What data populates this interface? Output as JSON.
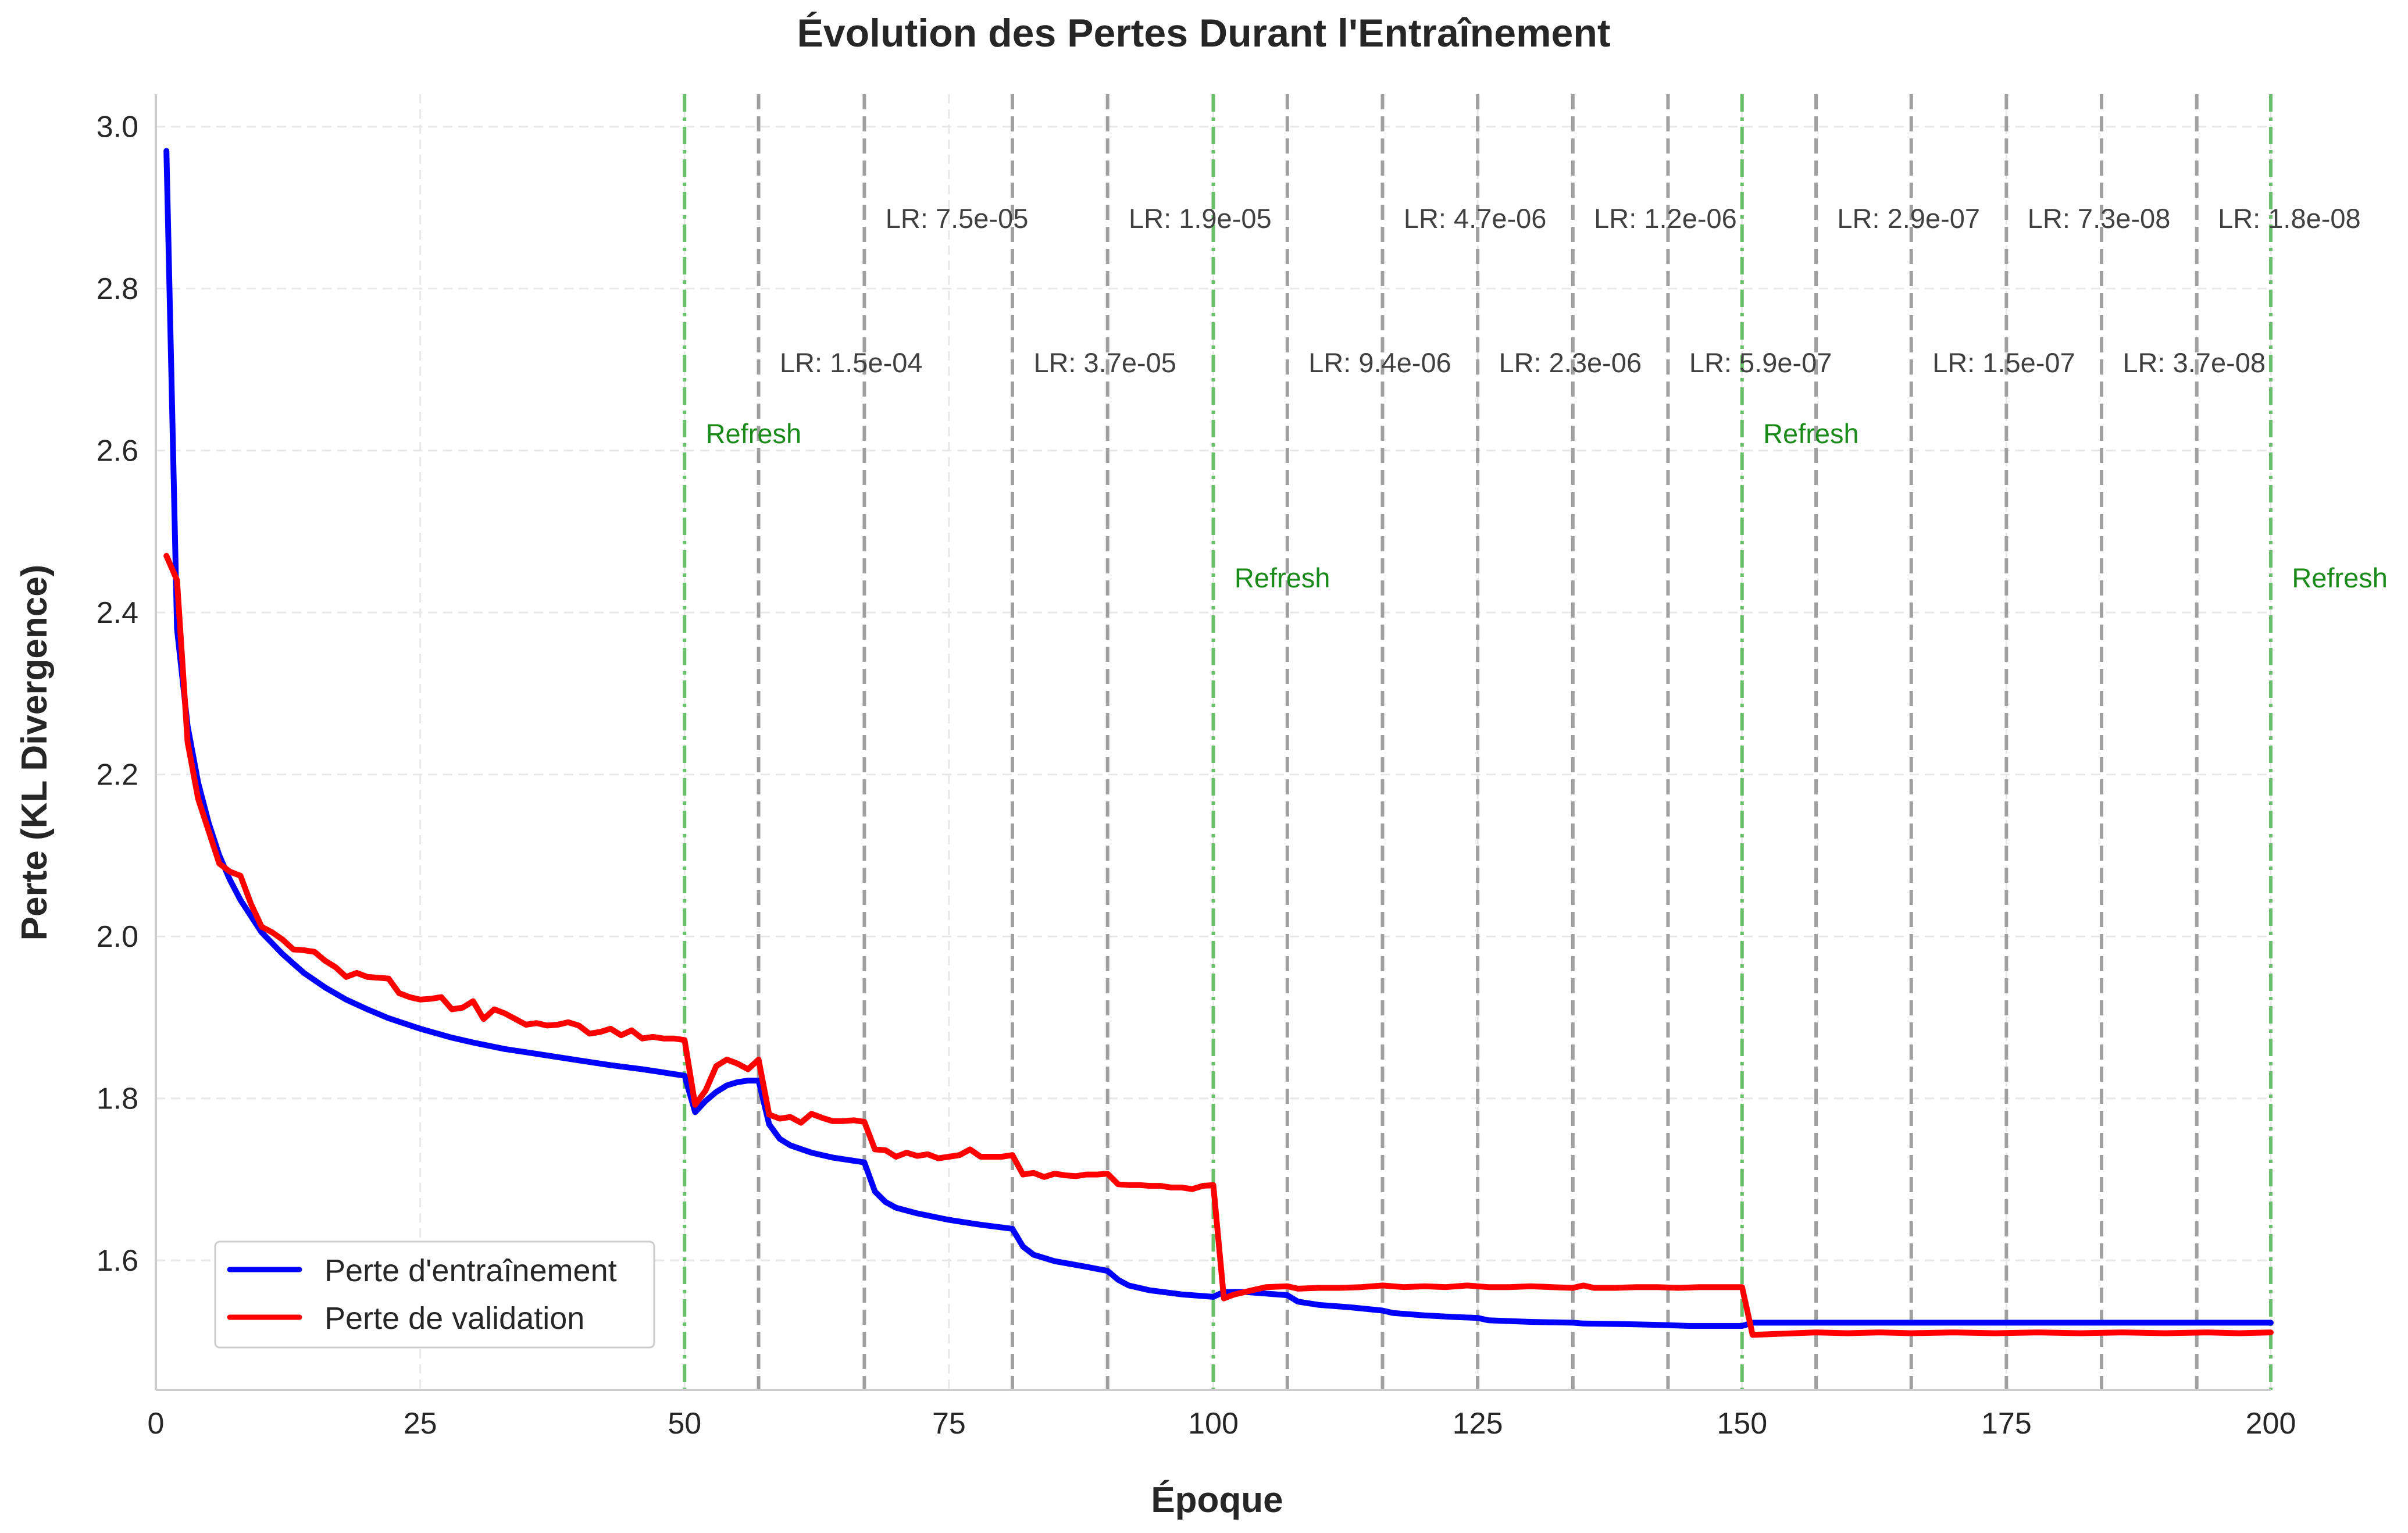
{
  "chart_data": {
    "type": "line",
    "title": "Évolution des Pertes Durant l'Entraînement",
    "xlabel": "Époque",
    "ylabel": "Perte (KL Divergence)",
    "xlim": [
      0,
      200
    ],
    "ylim": [
      1.44,
      3.04
    ],
    "xticks": [
      0,
      25,
      50,
      75,
      100,
      125,
      150,
      175,
      200
    ],
    "yticks": [
      1.6,
      1.8,
      2.0,
      2.2,
      2.4,
      2.6,
      2.8,
      3.0
    ],
    "ytick_labels": [
      "1.6",
      "1.8",
      "2.0",
      "2.2",
      "2.4",
      "2.6",
      "2.8",
      "3.0"
    ],
    "grid": true,
    "legend_position": "bottom-left",
    "series": [
      {
        "name": "Perte d'entraînement",
        "color": "#0000ff",
        "points": [
          [
            1,
            2.97
          ],
          [
            2,
            2.38
          ],
          [
            3,
            2.26
          ],
          [
            4,
            2.19
          ],
          [
            5,
            2.14
          ],
          [
            6,
            2.1
          ],
          [
            7,
            2.07
          ],
          [
            8,
            2.045
          ],
          [
            9,
            2.025
          ],
          [
            10,
            2.005
          ],
          [
            12,
            1.978
          ],
          [
            14,
            1.955
          ],
          [
            16,
            1.937
          ],
          [
            18,
            1.922
          ],
          [
            20,
            1.91
          ],
          [
            22,
            1.899
          ],
          [
            25,
            1.886
          ],
          [
            28,
            1.875
          ],
          [
            30,
            1.869
          ],
          [
            33,
            1.861
          ],
          [
            36,
            1.855
          ],
          [
            40,
            1.847
          ],
          [
            43,
            1.841
          ],
          [
            46,
            1.836
          ],
          [
            48,
            1.832
          ],
          [
            50,
            1.828
          ],
          [
            51,
            1.783
          ],
          [
            52,
            1.797
          ],
          [
            53,
            1.808
          ],
          [
            54,
            1.816
          ],
          [
            55,
            1.82
          ],
          [
            56,
            1.822
          ],
          [
            57,
            1.822
          ],
          [
            58,
            1.768
          ],
          [
            59,
            1.75
          ],
          [
            60,
            1.742
          ],
          [
            62,
            1.733
          ],
          [
            64,
            1.727
          ],
          [
            67,
            1.721
          ],
          [
            68,
            1.685
          ],
          [
            69,
            1.672
          ],
          [
            70,
            1.665
          ],
          [
            72,
            1.658
          ],
          [
            75,
            1.65
          ],
          [
            78,
            1.644
          ],
          [
            81,
            1.639
          ],
          [
            82,
            1.617
          ],
          [
            83,
            1.607
          ],
          [
            85,
            1.599
          ],
          [
            88,
            1.592
          ],
          [
            90,
            1.587
          ],
          [
            91,
            1.576
          ],
          [
            92,
            1.569
          ],
          [
            94,
            1.563
          ],
          [
            97,
            1.558
          ],
          [
            100,
            1.555
          ],
          [
            101,
            1.561
          ],
          [
            103,
            1.561
          ],
          [
            105,
            1.559
          ],
          [
            107,
            1.557
          ],
          [
            108,
            1.549
          ],
          [
            110,
            1.545
          ],
          [
            113,
            1.542
          ],
          [
            116,
            1.538
          ],
          [
            117,
            1.535
          ],
          [
            120,
            1.532
          ],
          [
            123,
            1.53
          ],
          [
            125,
            1.529
          ],
          [
            126,
            1.526
          ],
          [
            130,
            1.524
          ],
          [
            134,
            1.523
          ],
          [
            135,
            1.522
          ],
          [
            140,
            1.521
          ],
          [
            143,
            1.52
          ],
          [
            145,
            1.519
          ],
          [
            150,
            1.519
          ],
          [
            151,
            1.523
          ],
          [
            155,
            1.523
          ],
          [
            160,
            1.523
          ],
          [
            170,
            1.523
          ],
          [
            180,
            1.523
          ],
          [
            190,
            1.523
          ],
          [
            200,
            1.523
          ]
        ]
      },
      {
        "name": "Perte de validation",
        "color": "#ff0000",
        "points": [
          [
            1,
            2.47
          ],
          [
            2,
            2.44
          ],
          [
            3,
            2.24
          ],
          [
            4,
            2.17
          ],
          [
            5,
            2.13
          ],
          [
            6,
            2.09
          ],
          [
            7,
            2.08
          ],
          [
            8,
            2.075
          ],
          [
            9,
            2.04
          ],
          [
            10,
            2.012
          ],
          [
            11,
            2.005
          ],
          [
            12,
            1.996
          ],
          [
            13,
            1.984
          ],
          [
            14,
            1.983
          ],
          [
            15,
            1.981
          ],
          [
            16,
            1.97
          ],
          [
            17,
            1.962
          ],
          [
            18,
            1.95
          ],
          [
            19,
            1.955
          ],
          [
            20,
            1.95
          ],
          [
            21,
            1.949
          ],
          [
            22,
            1.948
          ],
          [
            23,
            1.93
          ],
          [
            24,
            1.925
          ],
          [
            25,
            1.922
          ],
          [
            26,
            1.923
          ],
          [
            27,
            1.925
          ],
          [
            28,
            1.91
          ],
          [
            29,
            1.912
          ],
          [
            30,
            1.92
          ],
          [
            31,
            1.898
          ],
          [
            32,
            1.91
          ],
          [
            33,
            1.905
          ],
          [
            34,
            1.898
          ],
          [
            35,
            1.891
          ],
          [
            36,
            1.893
          ],
          [
            37,
            1.89
          ],
          [
            38,
            1.891
          ],
          [
            39,
            1.894
          ],
          [
            40,
            1.89
          ],
          [
            41,
            1.88
          ],
          [
            42,
            1.882
          ],
          [
            43,
            1.886
          ],
          [
            44,
            1.878
          ],
          [
            45,
            1.884
          ],
          [
            46,
            1.874
          ],
          [
            47,
            1.876
          ],
          [
            48,
            1.874
          ],
          [
            49,
            1.874
          ],
          [
            50,
            1.872
          ],
          [
            51,
            1.792
          ],
          [
            52,
            1.81
          ],
          [
            53,
            1.84
          ],
          [
            54,
            1.848
          ],
          [
            55,
            1.843
          ],
          [
            56,
            1.836
          ],
          [
            57,
            1.848
          ],
          [
            58,
            1.78
          ],
          [
            59,
            1.775
          ],
          [
            60,
            1.777
          ],
          [
            61,
            1.77
          ],
          [
            62,
            1.781
          ],
          [
            63,
            1.776
          ],
          [
            64,
            1.772
          ],
          [
            65,
            1.772
          ],
          [
            66,
            1.773
          ],
          [
            67,
            1.771
          ],
          [
            68,
            1.737
          ],
          [
            69,
            1.736
          ],
          [
            70,
            1.728
          ],
          [
            71,
            1.733
          ],
          [
            72,
            1.729
          ],
          [
            73,
            1.731
          ],
          [
            74,
            1.726
          ],
          [
            75,
            1.728
          ],
          [
            76,
            1.73
          ],
          [
            77,
            1.737
          ],
          [
            78,
            1.728
          ],
          [
            79,
            1.728
          ],
          [
            80,
            1.728
          ],
          [
            81,
            1.73
          ],
          [
            82,
            1.706
          ],
          [
            83,
            1.708
          ],
          [
            84,
            1.703
          ],
          [
            85,
            1.707
          ],
          [
            86,
            1.705
          ],
          [
            87,
            1.704
          ],
          [
            88,
            1.706
          ],
          [
            89,
            1.706
          ],
          [
            90,
            1.707
          ],
          [
            91,
            1.694
          ],
          [
            92,
            1.693
          ],
          [
            93,
            1.693
          ],
          [
            94,
            1.692
          ],
          [
            95,
            1.692
          ],
          [
            96,
            1.69
          ],
          [
            97,
            1.69
          ],
          [
            98,
            1.688
          ],
          [
            99,
            1.692
          ],
          [
            100,
            1.693
          ],
          [
            101,
            1.553
          ],
          [
            102,
            1.558
          ],
          [
            103,
            1.561
          ],
          [
            104,
            1.564
          ],
          [
            105,
            1.567
          ],
          [
            107,
            1.568
          ],
          [
            108,
            1.565
          ],
          [
            110,
            1.566
          ],
          [
            112,
            1.566
          ],
          [
            114,
            1.567
          ],
          [
            115,
            1.568
          ],
          [
            116,
            1.569
          ],
          [
            118,
            1.567
          ],
          [
            120,
            1.568
          ],
          [
            122,
            1.567
          ],
          [
            124,
            1.569
          ],
          [
            126,
            1.567
          ],
          [
            128,
            1.567
          ],
          [
            130,
            1.568
          ],
          [
            132,
            1.567
          ],
          [
            134,
            1.566
          ],
          [
            135,
            1.569
          ],
          [
            136,
            1.566
          ],
          [
            138,
            1.566
          ],
          [
            140,
            1.567
          ],
          [
            142,
            1.567
          ],
          [
            144,
            1.566
          ],
          [
            146,
            1.567
          ],
          [
            148,
            1.567
          ],
          [
            150,
            1.567
          ],
          [
            151,
            1.508
          ],
          [
            153,
            1.509
          ],
          [
            155,
            1.51
          ],
          [
            157,
            1.511
          ],
          [
            160,
            1.51
          ],
          [
            163,
            1.511
          ],
          [
            166,
            1.51
          ],
          [
            170,
            1.511
          ],
          [
            174,
            1.51
          ],
          [
            178,
            1.511
          ],
          [
            182,
            1.51
          ],
          [
            186,
            1.511
          ],
          [
            190,
            1.51
          ],
          [
            194,
            1.511
          ],
          [
            197,
            1.51
          ],
          [
            200,
            1.511
          ]
        ]
      }
    ],
    "vlines_lr": [
      57,
      67,
      81,
      90,
      107,
      116,
      125,
      134,
      143,
      157,
      166,
      175,
      184,
      193
    ],
    "lr_annotations": [
      {
        "x": 59,
        "level": "low",
        "text": "LR: 1.5e-04"
      },
      {
        "x": 69,
        "level": "high",
        "text": "LR: 7.5e-05"
      },
      {
        "x": 83,
        "level": "low",
        "text": "LR: 3.7e-05"
      },
      {
        "x": 92,
        "level": "high",
        "text": "LR: 1.9e-05"
      },
      {
        "x": 109,
        "level": "low",
        "text": "LR: 9.4e-06"
      },
      {
        "x": 118,
        "level": "high",
        "text": "LR: 4.7e-06"
      },
      {
        "x": 127,
        "level": "low",
        "text": "LR: 2.3e-06"
      },
      {
        "x": 136,
        "level": "high",
        "text": "LR: 1.2e-06"
      },
      {
        "x": 145,
        "level": "low",
        "text": "LR: 5.9e-07"
      },
      {
        "x": 159,
        "level": "high",
        "text": "LR: 2.9e-07"
      },
      {
        "x": 168,
        "level": "low",
        "text": "LR: 1.5e-07"
      },
      {
        "x": 177,
        "level": "high",
        "text": "LR: 7.3e-08"
      },
      {
        "x": 186,
        "level": "low",
        "text": "LR: 3.7e-08"
      },
      {
        "x": 195,
        "level": "high",
        "text": "LR: 1.8e-08"
      }
    ],
    "vlines_refresh": [
      50,
      100,
      150,
      200
    ],
    "refresh_annotations": [
      {
        "x": 52,
        "level": "high",
        "text": "Refresh"
      },
      {
        "x": 102,
        "level": "low",
        "text": "Refresh"
      },
      {
        "x": 152,
        "level": "high",
        "text": "Refresh"
      },
      {
        "x": 202,
        "level": "low",
        "text": "Refresh"
      }
    ],
    "colors": {
      "lr_line": "#a0a0a0",
      "refresh_line": "#6abf6a",
      "grid": "#e8e8e8",
      "axis": "#cccccc"
    }
  }
}
